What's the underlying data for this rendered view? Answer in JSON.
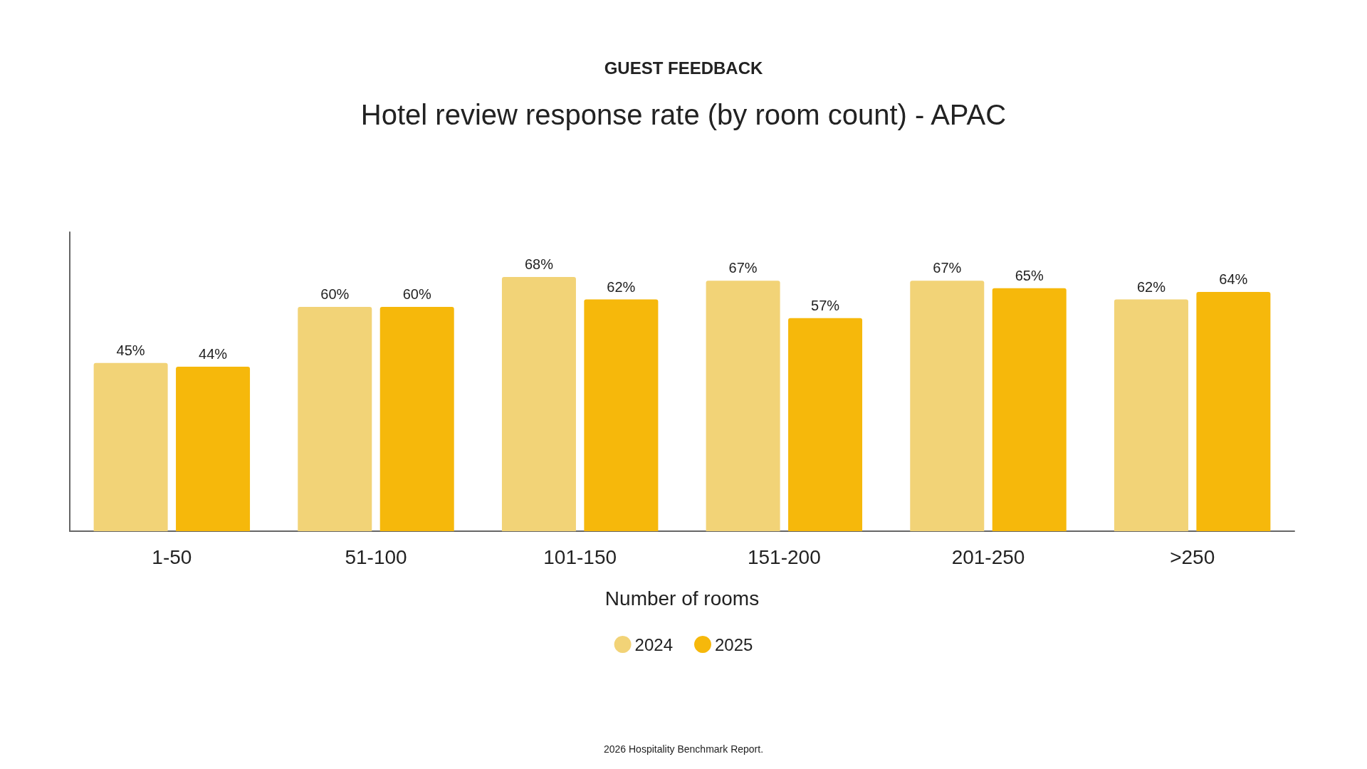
{
  "chart_data": {
    "type": "bar",
    "subtitle": "GUEST FEEDBACK",
    "title": "Hotel review response rate (by room count) - APAC",
    "xlabel": "Number of rooms",
    "categories": [
      "1-50",
      "51-100",
      "101-150",
      "151-200",
      "201-250",
      ">250"
    ],
    "series": [
      {
        "name": "2024",
        "color": "#f2d377",
        "values": [
          45,
          60,
          68,
          67,
          67,
          62
        ],
        "value_labels": [
          "45%",
          "60%",
          "68%",
          "67%",
          "67%",
          "62%"
        ]
      },
      {
        "name": "2025",
        "color": "#f6b80b",
        "values": [
          44,
          60,
          62,
          57,
          65,
          64
        ],
        "value_labels": [
          "44%",
          "60%",
          "62%",
          "57%",
          "65%",
          "64%"
        ]
      }
    ],
    "ylim": [
      0,
      80
    ],
    "tick_labels": "x",
    "grid": false,
    "legend": "bottom",
    "annotations": [
      "2026 Hospitality Benchmark Report."
    ]
  }
}
